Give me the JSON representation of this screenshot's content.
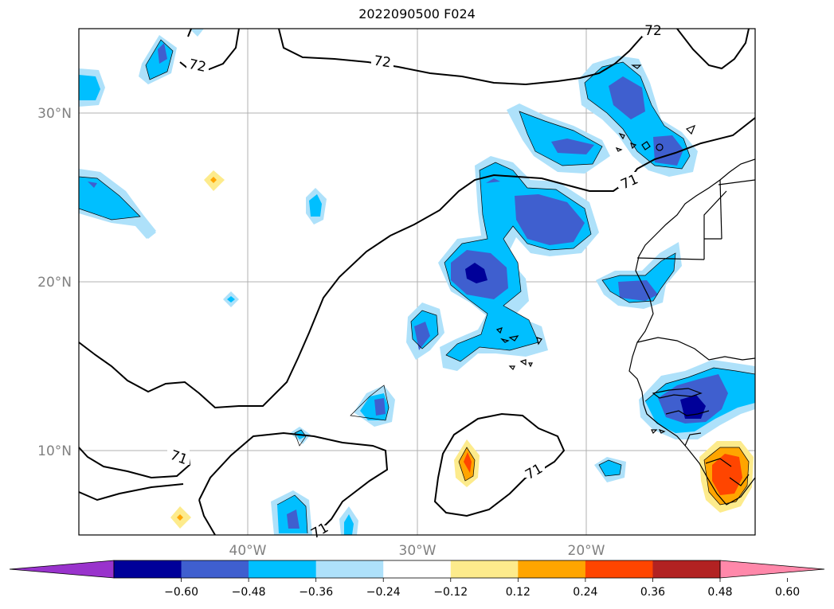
{
  "title": "2022090500 F024",
  "map": {
    "lat_labels": [
      "30°N",
      "20°N",
      "10°N"
    ],
    "lon_labels": [
      "40°W",
      "30°W",
      "20°W"
    ],
    "contour_labels": [
      "72",
      "72",
      "72",
      "71",
      "71",
      "71",
      "71"
    ],
    "grid": true
  },
  "colorbar": {
    "ticks": [
      "−0.60",
      "−0.48",
      "−0.36",
      "−0.24",
      "−0.12",
      "0.12",
      "0.24",
      "0.36",
      "0.48",
      "0.60"
    ],
    "colors": [
      "#9933cc",
      "#000099",
      "#3f5fcf",
      "#00bfff",
      "#aee1fa",
      "#ffffff",
      "#fdeb8c",
      "#ffa500",
      "#ff4500",
      "#b22222",
      "#ff88aa"
    ]
  }
}
